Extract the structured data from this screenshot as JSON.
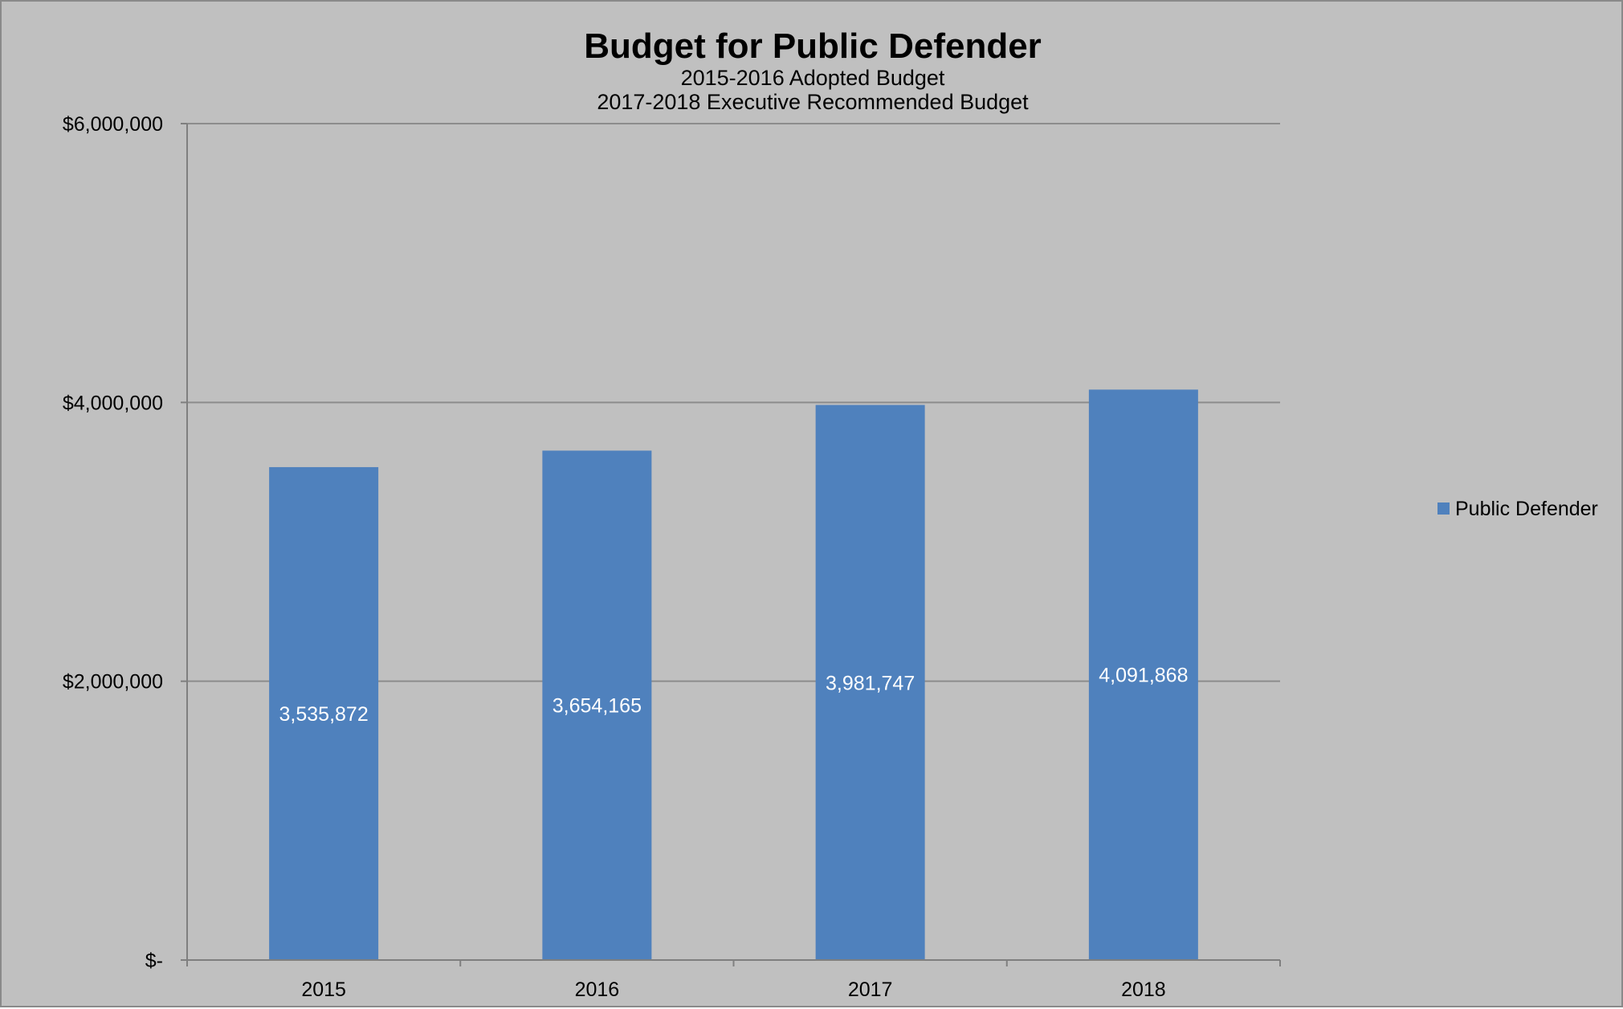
{
  "chart_data": {
    "type": "bar",
    "title": "Budget for Public Defender",
    "subtitles": [
      "2015-2016 Adopted Budget",
      "2017-2018 Executive Recommended Budget"
    ],
    "xlabel": "",
    "ylabel": "",
    "categories": [
      "2015",
      "2016",
      "2017",
      "2018"
    ],
    "series": [
      {
        "name": "Public Defender",
        "color": "#4f81bd",
        "values": [
          3535872,
          3654165,
          3981747,
          4091868
        ],
        "labels": [
          "3,535,872",
          "3,654,165",
          "3,981,747",
          "4,091,868"
        ]
      }
    ],
    "ylim": [
      0,
      6000000
    ],
    "yticks": [
      0,
      2000000,
      4000000,
      6000000
    ],
    "ytick_labels": [
      "$-",
      "$2,000,000",
      "$4,000,000",
      "$6,000,000"
    ],
    "grid": true,
    "legend_position": "right",
    "colors": {
      "background": "#c0c0c0",
      "bar": "#4f81bd",
      "data_label": "#ffffff"
    }
  }
}
